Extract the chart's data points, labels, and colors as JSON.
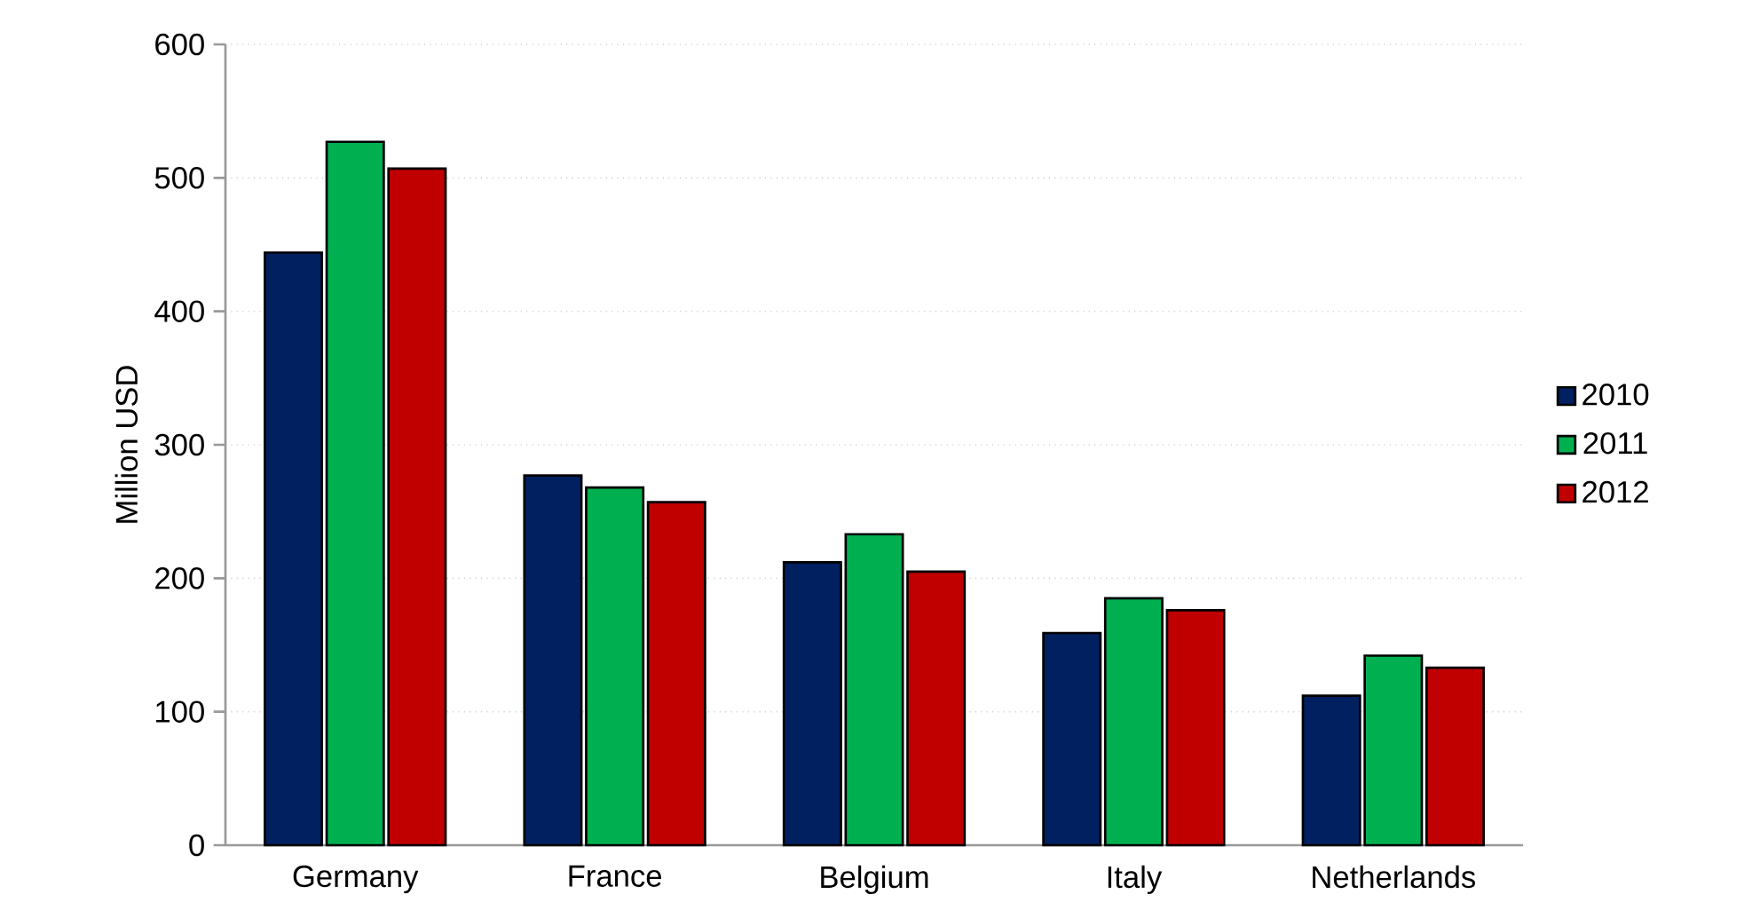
{
  "chart_data": {
    "type": "bar",
    "ylabel": "Million USD",
    "categories": [
      "Germany",
      "France",
      "Belgium",
      "Italy",
      "Netherlands"
    ],
    "series": [
      {
        "name": "2010",
        "color": "#002060",
        "values": [
          444,
          277,
          212,
          159,
          112
        ]
      },
      {
        "name": "2011",
        "color": "#00b050",
        "values": [
          527,
          268,
          233,
          185,
          142
        ]
      },
      {
        "name": "2012",
        "color": "#c00000",
        "values": [
          507,
          257,
          205,
          176,
          133
        ]
      }
    ],
    "ylim": [
      0,
      600
    ],
    "yticks": [
      0,
      100,
      200,
      300,
      400,
      500,
      600
    ],
    "grid": "y",
    "legend": "right"
  }
}
